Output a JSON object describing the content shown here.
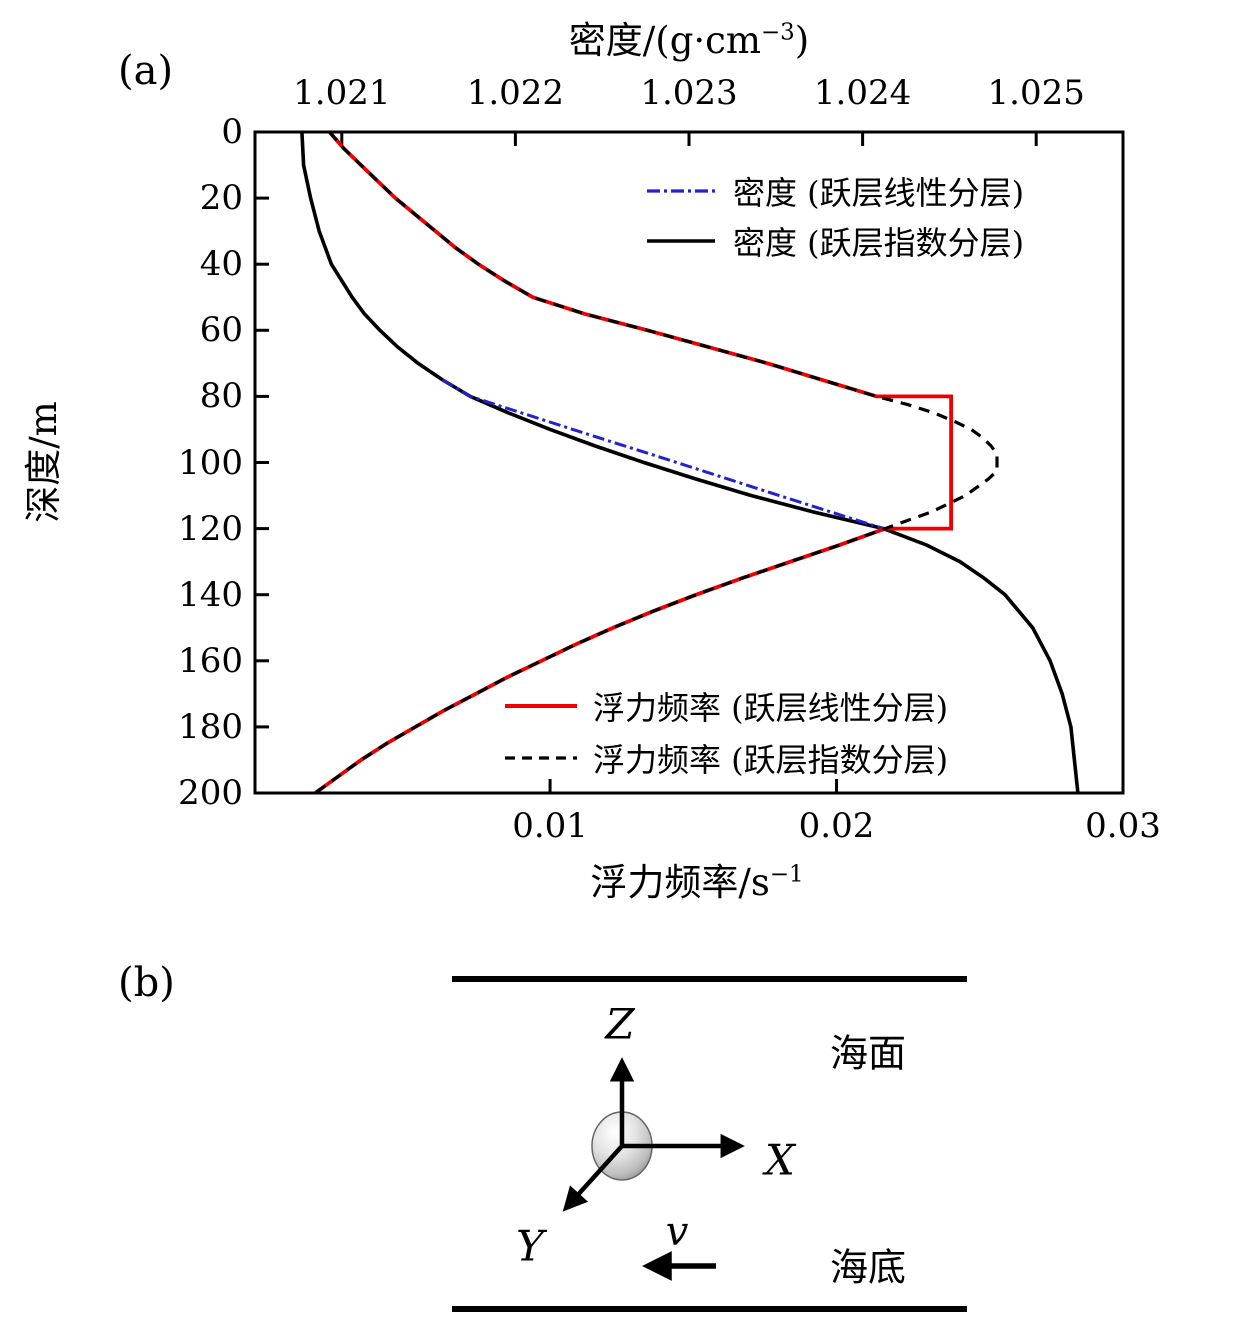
{
  "figure": {
    "background": "#ffffff"
  },
  "panel_a": {
    "label": "(a)",
    "top_axis": {
      "title_prefix": "密度/(g·cm",
      "title_sup": "−3",
      "title_suffix": ")"
    },
    "bottom_axis": {
      "title_prefix": "浮力频率/s",
      "title_sup": "−1",
      "title_suffix": ""
    },
    "left_axis": {
      "title": "深度/m"
    },
    "legend_density": [
      {
        "label": "密度 (跃层线性分层)",
        "color": "#2222cc",
        "style": "dashdot"
      },
      {
        "label": "密度 (跃层指数分层)",
        "color": "#000000",
        "style": "solid"
      }
    ],
    "legend_buoyancy": [
      {
        "label": "浮力频率 (跃层线性分层)",
        "color": "#ee0000",
        "style": "solid"
      },
      {
        "label": "浮力频率 (跃层指数分层)",
        "color": "#000000",
        "style": "dashed"
      }
    ]
  },
  "chart_data": {
    "type": "line",
    "title": "",
    "grid": false,
    "axes": {
      "x_bottom": {
        "label": "浮力频率/s⁻¹",
        "range": [
          -0.0003,
          0.03
        ],
        "ticks": [
          0.01,
          0.02,
          0.03
        ],
        "tick_labels": [
          "0.01",
          "0.02",
          "0.03"
        ]
      },
      "x_top": {
        "label": "密度/(g·cm⁻³)",
        "range": [
          1.0205,
          1.0255
        ],
        "ticks": [
          1.021,
          1.022,
          1.023,
          1.024,
          1.025
        ],
        "tick_labels": [
          "1.021",
          "1.022",
          "1.023",
          "1.024",
          "1.025"
        ]
      },
      "y": {
        "label": "深度/m",
        "range": [
          0,
          200
        ],
        "inverted": true,
        "ticks": [
          0,
          20,
          40,
          60,
          80,
          100,
          120,
          140,
          160,
          180,
          200
        ],
        "tick_labels": [
          "0",
          "20",
          "40",
          "60",
          "80",
          "100",
          "120",
          "140",
          "160",
          "180",
          "200"
        ]
      }
    },
    "series": [
      {
        "name": "密度 (跃层指数分层)",
        "axis": "x_top",
        "style": "solid",
        "color": "#000000",
        "width": 3.6,
        "points": [
          [
            1.02077,
            0
          ],
          [
            1.02078,
            10
          ],
          [
            1.02082,
            20
          ],
          [
            1.02087,
            30
          ],
          [
            1.02094,
            40
          ],
          [
            1.02106,
            50
          ],
          [
            1.02113,
            55
          ],
          [
            1.02122,
            60
          ],
          [
            1.02132,
            65
          ],
          [
            1.02144,
            70
          ],
          [
            1.02158,
            75
          ],
          [
            1.02174,
            80
          ],
          [
            1.02196,
            85
          ],
          [
            1.0222,
            90
          ],
          [
            1.02246,
            95
          ],
          [
            1.02274,
            100
          ],
          [
            1.02304,
            105
          ],
          [
            1.02336,
            110
          ],
          [
            1.02372,
            115
          ],
          [
            1.02412,
            120
          ],
          [
            1.02437,
            125
          ],
          [
            1.02456,
            130
          ],
          [
            1.0247,
            135
          ],
          [
            1.02482,
            140
          ],
          [
            1.02498,
            150
          ],
          [
            1.02508,
            160
          ],
          [
            1.02515,
            170
          ],
          [
            1.0252,
            180
          ],
          [
            1.02522,
            190
          ],
          [
            1.02524,
            200
          ]
        ]
      },
      {
        "name": "密度 (跃层线性分层)",
        "axis": "x_top",
        "style": "dashdot",
        "color": "#2222cc",
        "width": 3,
        "draw_depth_range": [
          75,
          121
        ],
        "points": [
          [
            1.02077,
            0
          ],
          [
            1.02078,
            10
          ],
          [
            1.02082,
            20
          ],
          [
            1.02087,
            30
          ],
          [
            1.02094,
            40
          ],
          [
            1.02106,
            50
          ],
          [
            1.02113,
            55
          ],
          [
            1.02122,
            60
          ],
          [
            1.02132,
            65
          ],
          [
            1.02144,
            70
          ],
          [
            1.02158,
            75
          ],
          [
            1.02174,
            80
          ],
          [
            1.02233,
            90
          ],
          [
            1.02293,
            100
          ],
          [
            1.02352,
            110
          ],
          [
            1.02412,
            120
          ],
          [
            1.02437,
            125
          ],
          [
            1.02456,
            130
          ],
          [
            1.0247,
            135
          ],
          [
            1.02482,
            140
          ],
          [
            1.02498,
            150
          ],
          [
            1.02508,
            160
          ],
          [
            1.02515,
            170
          ],
          [
            1.0252,
            180
          ],
          [
            1.02522,
            190
          ],
          [
            1.02524,
            200
          ]
        ]
      },
      {
        "name": "浮力频率 (跃层线性分层)",
        "axis": "x_bottom",
        "style": "solid",
        "color": "#ee0000",
        "width": 3.8,
        "points": [
          [
            0.0023,
            0
          ],
          [
            0.0028,
            5
          ],
          [
            0.0034,
            10
          ],
          [
            0.004,
            15
          ],
          [
            0.0046,
            20
          ],
          [
            0.0053,
            25
          ],
          [
            0.006,
            30
          ],
          [
            0.0067,
            35
          ],
          [
            0.0075,
            40
          ],
          [
            0.0084,
            45
          ],
          [
            0.0094,
            50
          ],
          [
            0.0112,
            55
          ],
          [
            0.0134,
            60
          ],
          [
            0.0155,
            65
          ],
          [
            0.0176,
            70
          ],
          [
            0.0195,
            75
          ],
          [
            0.0214,
            80
          ],
          [
            0.024,
            80
          ],
          [
            0.024,
            120
          ],
          [
            0.0217,
            120
          ],
          [
            0.0201,
            125
          ],
          [
            0.0184,
            130
          ],
          [
            0.0167,
            135
          ],
          [
            0.0151,
            140
          ],
          [
            0.0136,
            145
          ],
          [
            0.0122,
            150
          ],
          [
            0.0109,
            155
          ],
          [
            0.0097,
            160
          ],
          [
            0.0085,
            165
          ],
          [
            0.0074,
            170
          ],
          [
            0.0063,
            175
          ],
          [
            0.0053,
            180
          ],
          [
            0.0043,
            185
          ],
          [
            0.0034,
            190
          ],
          [
            0.0026,
            195
          ],
          [
            0.0018,
            200
          ]
        ]
      },
      {
        "name": "浮力频率 (跃层指数分层)",
        "axis": "x_bottom",
        "style": "dashed",
        "color": "#000000",
        "width": 3.2,
        "points": [
          [
            0.0023,
            0
          ],
          [
            0.0028,
            5
          ],
          [
            0.0034,
            10
          ],
          [
            0.004,
            15
          ],
          [
            0.0046,
            20
          ],
          [
            0.0053,
            25
          ],
          [
            0.006,
            30
          ],
          [
            0.0067,
            35
          ],
          [
            0.0075,
            40
          ],
          [
            0.0084,
            45
          ],
          [
            0.0094,
            50
          ],
          [
            0.0112,
            55
          ],
          [
            0.0134,
            60
          ],
          [
            0.0155,
            65
          ],
          [
            0.0176,
            70
          ],
          [
            0.0195,
            75
          ],
          [
            0.0214,
            80
          ],
          [
            0.0225,
            82.5
          ],
          [
            0.0234,
            85
          ],
          [
            0.0241,
            87.5
          ],
          [
            0.0247,
            90
          ],
          [
            0.0251,
            92.5
          ],
          [
            0.0254,
            95
          ],
          [
            0.0256,
            97.5
          ],
          [
            0.0256,
            100
          ],
          [
            0.0256,
            102.5
          ],
          [
            0.0253,
            105
          ],
          [
            0.0249,
            107.5
          ],
          [
            0.0245,
            110
          ],
          [
            0.0239,
            112.5
          ],
          [
            0.0233,
            115
          ],
          [
            0.0225,
            117.5
          ],
          [
            0.0217,
            120
          ],
          [
            0.0201,
            125
          ],
          [
            0.0184,
            130
          ],
          [
            0.0167,
            135
          ],
          [
            0.0151,
            140
          ],
          [
            0.0136,
            145
          ],
          [
            0.0122,
            150
          ],
          [
            0.0109,
            155
          ],
          [
            0.0097,
            160
          ],
          [
            0.0085,
            165
          ],
          [
            0.0074,
            170
          ],
          [
            0.0063,
            175
          ],
          [
            0.0053,
            180
          ],
          [
            0.0043,
            185
          ],
          [
            0.0034,
            190
          ],
          [
            0.0026,
            195
          ],
          [
            0.0018,
            200
          ]
        ]
      }
    ]
  },
  "panel_b": {
    "label": "(b)",
    "sea_surface_label": "海面",
    "sea_bottom_label": "海底",
    "axis_labels": {
      "x": "X",
      "y": "Y",
      "z": "Z"
    },
    "velocity_label": "v"
  }
}
